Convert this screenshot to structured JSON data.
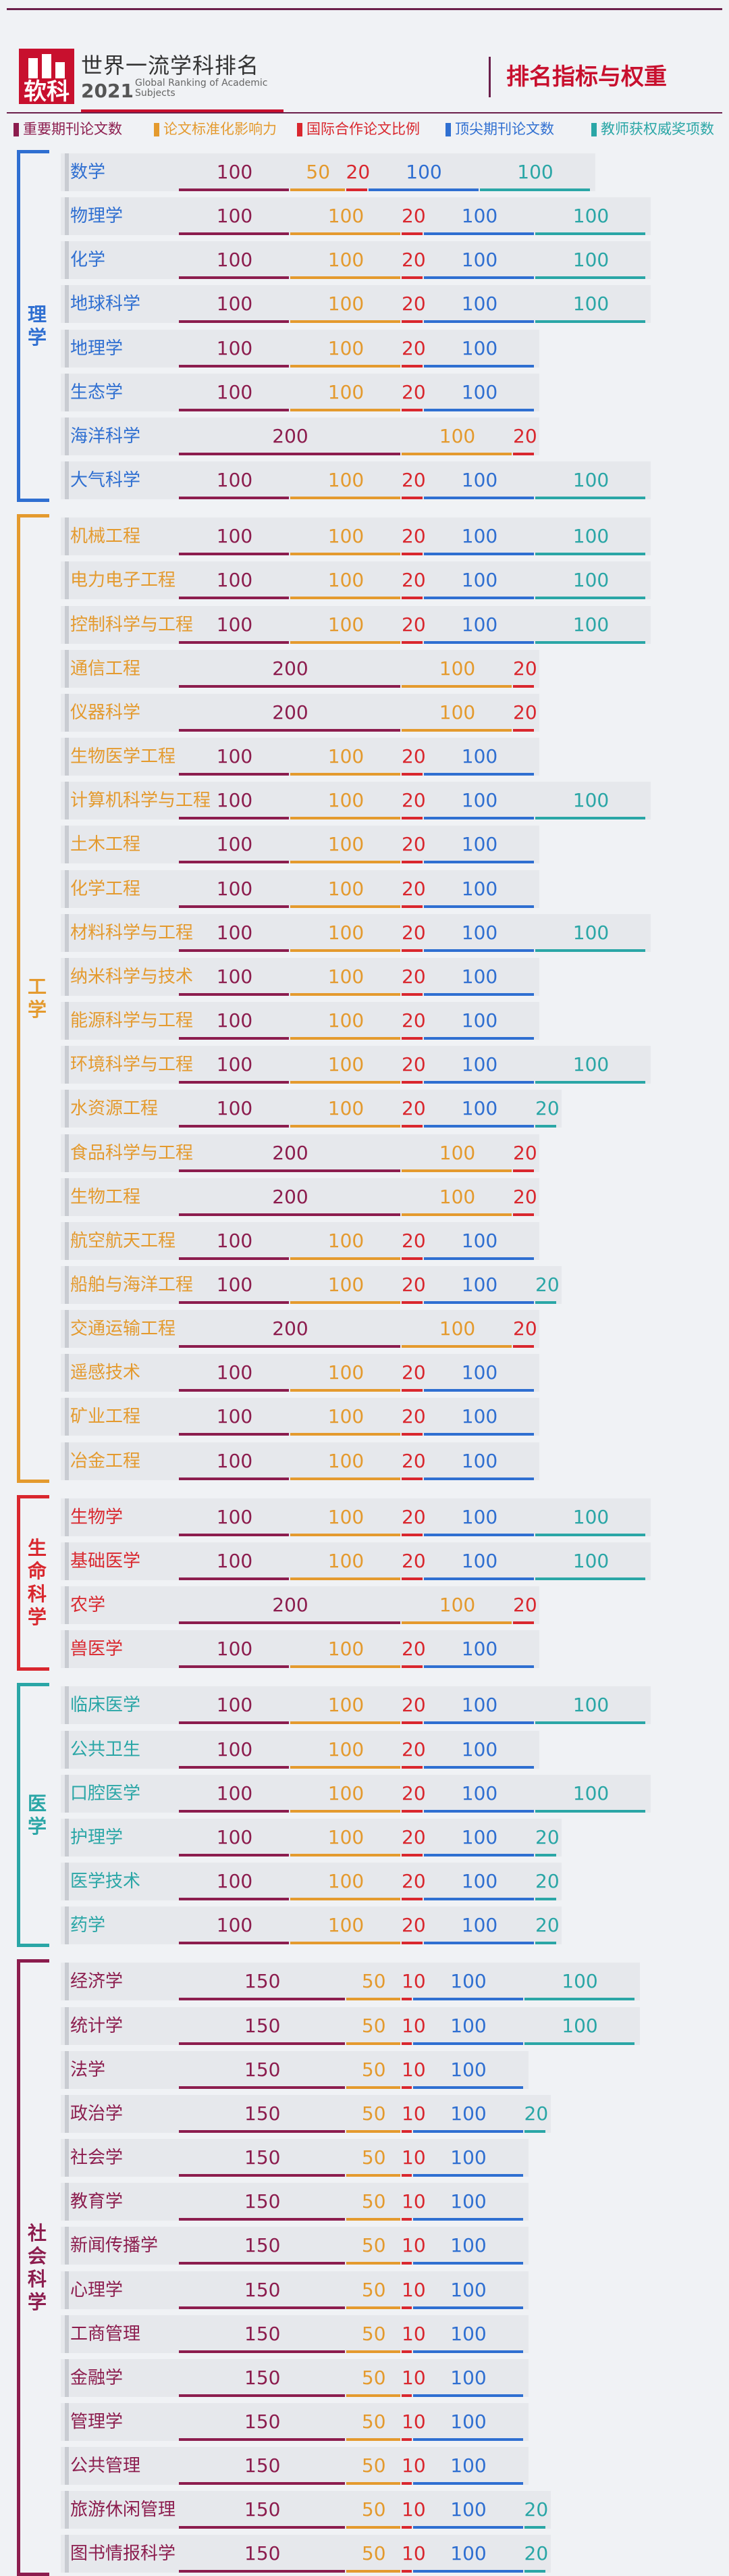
{
  "header": {
    "logo_text": "软科",
    "title_cn": "世界一流学科排名",
    "year": "2021",
    "title_en": "Global Ranking of Academic Subjects",
    "page_title": "排名指标与权重"
  },
  "colors": {
    "pub": "#8c1d4e",
    "cnci": "#e49a2e",
    "ic": "#d9272e",
    "top": "#2f6fd1",
    "award": "#2aa6a6",
    "sci": "#2f6fd1",
    "eng": "#e49a2e",
    "life": "#d9272e",
    "med": "#2aa6a6",
    "soc": "#8c1d4e"
  },
  "chart_data": {
    "type": "bar",
    "title": "排名指标与权重",
    "stacked": true,
    "orientation": "horizontal",
    "legend": [
      {
        "key": "pub",
        "label": "重要期刊论文数"
      },
      {
        "key": "cnci",
        "label": "论文标准化影响力"
      },
      {
        "key": "ic",
        "label": "国际合作论文比例"
      },
      {
        "key": "top",
        "label": "顶尖期刊论文数"
      },
      {
        "key": "award",
        "label": "教师获权威奖项数"
      }
    ],
    "groups": [
      {
        "name": "理学",
        "color": "sci",
        "rows": [
          {
            "name": "数学",
            "v": [
              100,
              50,
              20,
              100,
              100
            ]
          },
          {
            "name": "物理学",
            "v": [
              100,
              100,
              20,
              100,
              100
            ]
          },
          {
            "name": "化学",
            "v": [
              100,
              100,
              20,
              100,
              100
            ]
          },
          {
            "name": "地球科学",
            "v": [
              100,
              100,
              20,
              100,
              100
            ]
          },
          {
            "name": "地理学",
            "v": [
              100,
              100,
              20,
              100,
              0
            ]
          },
          {
            "name": "生态学",
            "v": [
              100,
              100,
              20,
              100,
              0
            ]
          },
          {
            "name": "海洋科学",
            "v": [
              200,
              100,
              20,
              0,
              0
            ]
          },
          {
            "name": "大气科学",
            "v": [
              100,
              100,
              20,
              100,
              100
            ]
          }
        ]
      },
      {
        "name": "工学",
        "color": "eng",
        "rows": [
          {
            "name": "机械工程",
            "v": [
              100,
              100,
              20,
              100,
              100
            ]
          },
          {
            "name": "电力电子工程",
            "v": [
              100,
              100,
              20,
              100,
              100
            ]
          },
          {
            "name": "控制科学与工程",
            "v": [
              100,
              100,
              20,
              100,
              100
            ]
          },
          {
            "name": "通信工程",
            "v": [
              200,
              100,
              20,
              0,
              0
            ]
          },
          {
            "name": "仪器科学",
            "v": [
              200,
              100,
              20,
              0,
              0
            ]
          },
          {
            "name": "生物医学工程",
            "v": [
              100,
              100,
              20,
              100,
              0
            ]
          },
          {
            "name": "计算机科学与工程",
            "v": [
              100,
              100,
              20,
              100,
              100
            ]
          },
          {
            "name": "土木工程",
            "v": [
              100,
              100,
              20,
              100,
              0
            ]
          },
          {
            "name": "化学工程",
            "v": [
              100,
              100,
              20,
              100,
              0
            ]
          },
          {
            "name": "材料科学与工程",
            "v": [
              100,
              100,
              20,
              100,
              100
            ]
          },
          {
            "name": "纳米科学与技术",
            "v": [
              100,
              100,
              20,
              100,
              0
            ]
          },
          {
            "name": "能源科学与工程",
            "v": [
              100,
              100,
              20,
              100,
              0
            ]
          },
          {
            "name": "环境科学与工程",
            "v": [
              100,
              100,
              20,
              100,
              100
            ]
          },
          {
            "name": "水资源工程",
            "v": [
              100,
              100,
              20,
              100,
              20
            ]
          },
          {
            "name": "食品科学与工程",
            "v": [
              200,
              100,
              20,
              0,
              0
            ]
          },
          {
            "name": "生物工程",
            "v": [
              200,
              100,
              20,
              0,
              0
            ]
          },
          {
            "name": "航空航天工程",
            "v": [
              100,
              100,
              20,
              100,
              0
            ]
          },
          {
            "name": "船舶与海洋工程",
            "v": [
              100,
              100,
              20,
              100,
              20
            ]
          },
          {
            "name": "交通运输工程",
            "v": [
              200,
              100,
              20,
              0,
              0
            ]
          },
          {
            "name": "遥感技术",
            "v": [
              100,
              100,
              20,
              100,
              0
            ]
          },
          {
            "name": "矿业工程",
            "v": [
              100,
              100,
              20,
              100,
              0
            ]
          },
          {
            "name": "冶金工程",
            "v": [
              100,
              100,
              20,
              100,
              0
            ]
          }
        ]
      },
      {
        "name": "生命科学",
        "color": "life",
        "rows": [
          {
            "name": "生物学",
            "v": [
              100,
              100,
              20,
              100,
              100
            ]
          },
          {
            "name": "基础医学",
            "v": [
              100,
              100,
              20,
              100,
              100
            ]
          },
          {
            "name": "农学",
            "v": [
              200,
              100,
              20,
              0,
              0
            ]
          },
          {
            "name": "兽医学",
            "v": [
              100,
              100,
              20,
              100,
              0
            ]
          }
        ]
      },
      {
        "name": "医学",
        "color": "med",
        "rows": [
          {
            "name": "临床医学",
            "v": [
              100,
              100,
              20,
              100,
              100
            ]
          },
          {
            "name": "公共卫生",
            "v": [
              100,
              100,
              20,
              100,
              0
            ]
          },
          {
            "name": "口腔医学",
            "v": [
              100,
              100,
              20,
              100,
              100
            ]
          },
          {
            "name": "护理学",
            "v": [
              100,
              100,
              20,
              100,
              20
            ]
          },
          {
            "name": "医学技术",
            "v": [
              100,
              100,
              20,
              100,
              20
            ]
          },
          {
            "name": "药学",
            "v": [
              100,
              100,
              20,
              100,
              20
            ]
          }
        ]
      },
      {
        "name": "社会科学",
        "color": "soc",
        "rows": [
          {
            "name": "经济学",
            "v": [
              150,
              50,
              10,
              100,
              100
            ]
          },
          {
            "name": "统计学",
            "v": [
              150,
              50,
              10,
              100,
              100
            ]
          },
          {
            "name": "法学",
            "v": [
              150,
              50,
              10,
              100,
              0
            ]
          },
          {
            "name": "政治学",
            "v": [
              150,
              50,
              10,
              100,
              20
            ]
          },
          {
            "name": "社会学",
            "v": [
              150,
              50,
              10,
              100,
              0
            ]
          },
          {
            "name": "教育学",
            "v": [
              150,
              50,
              10,
              100,
              0
            ]
          },
          {
            "name": "新闻传播学",
            "v": [
              150,
              50,
              10,
              100,
              0
            ]
          },
          {
            "name": "心理学",
            "v": [
              150,
              50,
              10,
              100,
              0
            ]
          },
          {
            "name": "工商管理",
            "v": [
              150,
              50,
              10,
              100,
              0
            ]
          },
          {
            "name": "金融学",
            "v": [
              150,
              50,
              10,
              100,
              0
            ]
          },
          {
            "name": "管理学",
            "v": [
              150,
              50,
              10,
              100,
              0
            ]
          },
          {
            "name": "公共管理",
            "v": [
              150,
              50,
              10,
              100,
              0
            ]
          },
          {
            "name": "旅游休闲管理",
            "v": [
              150,
              50,
              10,
              100,
              20
            ]
          },
          {
            "name": "图书情报科学",
            "v": [
              150,
              50,
              10,
              100,
              20
            ]
          }
        ]
      }
    ]
  }
}
